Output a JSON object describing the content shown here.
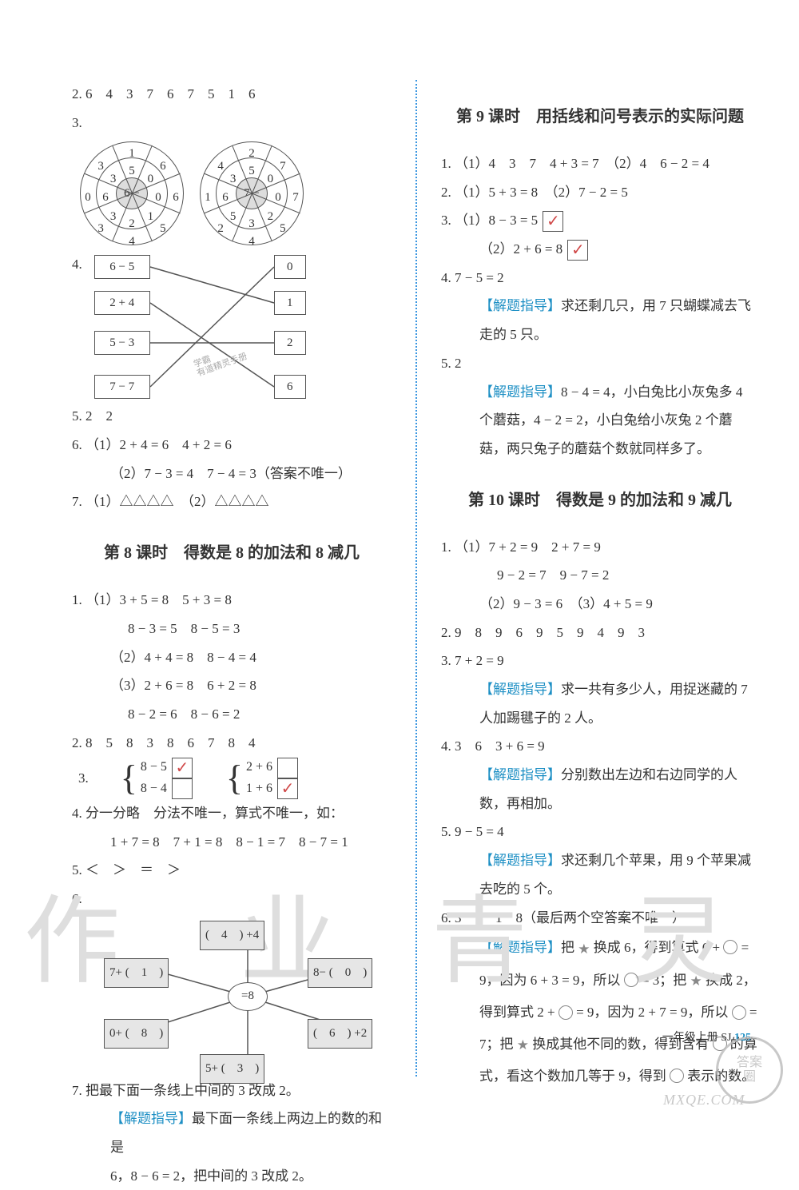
{
  "left": {
    "q2": "2. 6　4　3　7　6　7　5　1　6",
    "q3_label": "3.",
    "dial1": {
      "center": "6 −",
      "outer": [
        "1",
        "6",
        "6",
        "5",
        "4",
        "3",
        "0",
        "3"
      ],
      "inner": [
        "5",
        "0",
        "0",
        "1",
        "2",
        "3",
        "6",
        "3"
      ]
    },
    "dial2": {
      "center": "7 −",
      "outer": [
        "2",
        "7",
        "7",
        "5",
        "4",
        "2",
        "1",
        "4"
      ],
      "inner": [
        "5",
        "0",
        "0",
        "2",
        "3",
        "5",
        "6",
        "3"
      ]
    },
    "q4_label": "4.",
    "match_left": [
      "6 − 5",
      "2 + 4",
      "5 − 3",
      "7 − 7"
    ],
    "match_right": [
      "0",
      "1",
      "2",
      "6"
    ],
    "q5": "5. 2　2",
    "q6a": "6. （1）2 + 4 = 6　4 + 2 = 6",
    "q6b": "（2）7 − 3 = 4　7 − 4 = 3（答案不唯一）",
    "q7": "7. （1）△△△△　（2）△△△△",
    "h8": "第 8 课时　得数是 8 的加法和 8 减几",
    "s8": {
      "l1": "1. （1）3 + 5 = 8　5 + 3 = 8",
      "l2": "8 − 3 = 5　8 − 5 = 3",
      "l3": "（2）4 + 4 = 8　8 − 4 = 4",
      "l4": "（3）2 + 6 = 8　6 + 2 = 8",
      "l5": "8 − 2 = 6　8 − 6 = 2",
      "l6": "2. 8　5　8　3　8　6　7　8　4",
      "brace_num": "3.",
      "b1a": "8 − 5",
      "b1b": "8 − 4",
      "b2a": "2 + 6",
      "b2b": "1 + 6",
      "l8": "4. 分一分略　分法不唯一，算式不唯一，如：",
      "l9": "1 + 7 = 8　7 + 1 = 8　8 − 1 = 7　8 − 7 = 1",
      "l10": "5. ＜　＞　＝　＞",
      "l11": "6.",
      "web_center": "=8",
      "web_nodes": {
        "top": "(　4　) +4",
        "ul": "7+ (　1　)",
        "ur": "8− (　0　)",
        "bl": "0+ (　8　)",
        "br": "(　6　) +2",
        "bot": "5+ (　3　)"
      },
      "l12": "7. 把最下面一条线上中间的 3 改成 2。",
      "hint_lbl": "【解题指导】",
      "l13": "最下面一条线上两边上的数的和是",
      "l14": "6，8 − 6 = 2，把中间的 3 改成 2。"
    }
  },
  "right": {
    "h9": "第 9 课时　用括线和问号表示的实际问题",
    "s9": {
      "l1": "1. （1）4　3　7　4 + 3 = 7　（2）4　6 − 2 = 4",
      "l2": "2. （1）5 + 3 = 8　（2）7 − 2 = 5",
      "l3a": "3. （1）8 − 3 = 5",
      "l3b": "（2）2 + 6 = 8",
      "l4": "4. 7 − 5 = 2",
      "hint_lbl": "【解题指导】",
      "h4": "求还剩几只，用 7 只蝴蝶减去飞走的 5 只。",
      "l5": "5. 2",
      "h5a": "8 − 4 = 4，小白兔比小灰兔多 4 个蘑菇，4 − 2 = 2，小白兔给小灰兔 2 个蘑菇，两只兔子的蘑菇个数就同样多了。"
    },
    "h10": "第 10 课时　得数是 9 的加法和 9 减几",
    "s10": {
      "l1": "1. （1）7 + 2 = 9　2 + 7 = 9",
      "l2": "9 − 2 = 7　9 − 7 = 2",
      "l3": "（2）9 − 3 = 6　（3）4 + 5 = 9",
      "l4": "2. 9　8　9　6　9　5　9　4　9　3",
      "l5": "3. 7 + 2 = 9",
      "h3": "求一共有多少人，用捉迷藏的 7 人加踢毽子的 2 人。",
      "l6": "4. 3　6　3 + 6 = 9",
      "h4": "分别数出左边和右边同学的人数，再相加。",
      "l7": "5. 9 − 5 = 4",
      "h5": "求还剩几个苹果，用 9 个苹果减去吃的 5 个。",
      "l8": "6. 3　7　1　8（最后两个空答案不唯一）",
      "h6a": "把 ",
      "h6b": " 换成 6，得到算式 6 + ",
      "h6c": " = 9，因为 6 + 3 = 9，所以 ",
      "h6d": " = 3；把 ",
      "h6e": " 换成 2，得到算式 2 + ",
      "h6f": " = 9，因为 2 + 7 = 9，所以 ",
      "h6g": " = 7；把 ",
      "h6h": " 换成其他不同的数，得到含有 ",
      "h6i": " 的算式，看这个数加几等于 9，得到 ",
      "h6j": " 表示的数。"
    }
  },
  "footer": {
    "text": "一年级上册 SJ ",
    "page": "125"
  },
  "watermark": {
    "l": "作 业",
    "r": "青 灵"
  },
  "stamp": {
    "circle": "答案\n圈",
    "url": "MXQE.COM"
  },
  "check": "✓"
}
